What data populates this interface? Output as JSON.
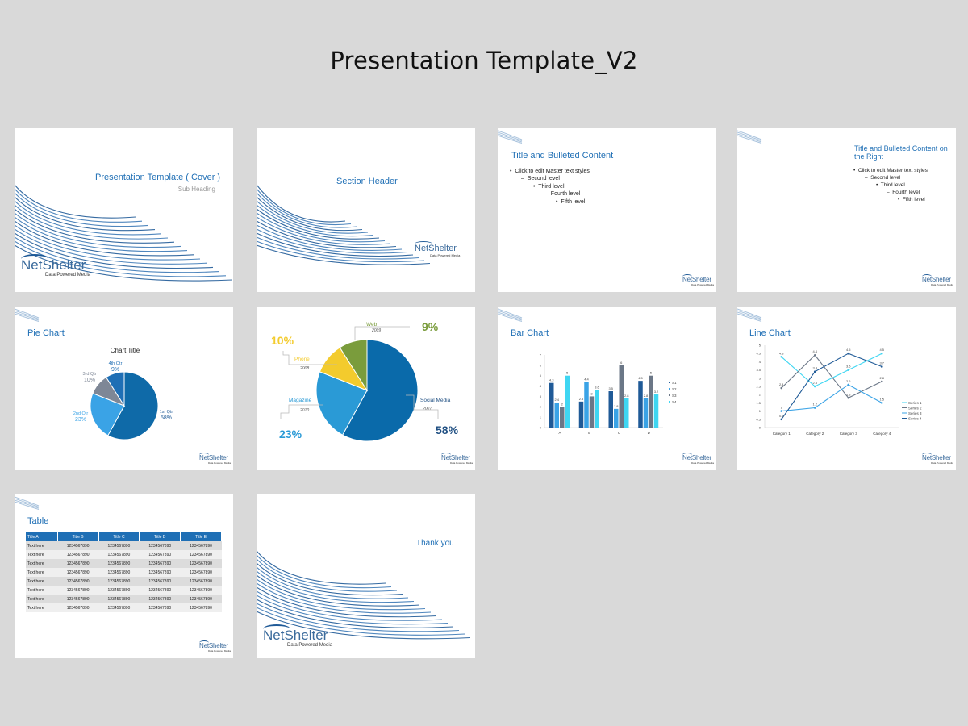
{
  "page_title": "Presentation Template_V2",
  "brand": {
    "logo": "NetShelter",
    "tagline": "Data Powered Media",
    "accent": "#1f6fb5"
  },
  "slides": {
    "cover": {
      "title": "Presentation Template ( Cover )",
      "subtitle": "Sub Heading"
    },
    "section": {
      "title": "Section Header"
    },
    "bulleted": {
      "title": "Title and Bulleted Content",
      "levels": [
        "Click to edit Master text styles",
        "Second level",
        "Third level",
        "Fourth level",
        "Fifth level"
      ]
    },
    "bulleted_right": {
      "title_line1": "Title and Bulleted Content on",
      "title_line2": "the Right",
      "levels": [
        "Click to edit Master text styles",
        "Second level",
        "Third level",
        "Fourth level",
        "Fifth level"
      ]
    },
    "pie": {
      "title": "Pie Chart"
    },
    "pie2": {},
    "bar": {
      "title": "Bar Chart"
    },
    "line": {
      "title": "Line Chart"
    },
    "table": {
      "title": "Table",
      "headers": [
        "Title A",
        "Title B",
        "Title C",
        "Title D",
        "Title E"
      ],
      "rows": [
        [
          "Text here",
          "1234567890",
          "1234567890",
          "1234567890",
          "1234567890"
        ],
        [
          "Text here",
          "1234567890",
          "1234567890",
          "1234567890",
          "1234567890"
        ],
        [
          "Text here",
          "1234567890",
          "1234567890",
          "1234567890",
          "1234567890"
        ],
        [
          "Text here",
          "1234567890",
          "1234567890",
          "1234567890",
          "1234567890"
        ],
        [
          "Text here",
          "1234567890",
          "1234567890",
          "1234567890",
          "1234567890"
        ],
        [
          "Text here",
          "1234567890",
          "1234567890",
          "1234567890",
          "1234567890"
        ],
        [
          "Text here",
          "1234567890",
          "1234567890",
          "1234567890",
          "1234567890"
        ],
        [
          "Text here",
          "1234567890",
          "1234567890",
          "1234567890",
          "1234567890"
        ]
      ]
    },
    "thanks": {
      "title": "Thank you"
    }
  },
  "chart_data": [
    {
      "type": "pie",
      "title": "Chart Title",
      "categories": [
        "1st Qtr",
        "2nd Qtr",
        "3rd Qtr",
        "4th Qtr"
      ],
      "labels": [
        "58%",
        "23%",
        "10%",
        "9%"
      ],
      "values": [
        58,
        23,
        10,
        9
      ],
      "colors": [
        "#0f6aa8",
        "#3aa3e6",
        "#7e8796",
        "#1f6fb5"
      ]
    },
    {
      "type": "pie",
      "categories": [
        "Social Media",
        "Magazine",
        "Phone",
        "Web"
      ],
      "years": [
        "2007",
        "2010",
        "2008",
        "2009"
      ],
      "labels": [
        "58%",
        "23%",
        "10%",
        "9%"
      ],
      "values": [
        58,
        23,
        10,
        9
      ],
      "colors": [
        "#0a6aaa",
        "#2a9ad6",
        "#f3cb2d",
        "#7a9c3c"
      ]
    },
    {
      "type": "bar",
      "categories": [
        "A",
        "B",
        "C",
        "D"
      ],
      "ylim": [
        0,
        7
      ],
      "yticks": [
        "0",
        "1",
        "2",
        "3",
        "4",
        "5",
        "6",
        "7"
      ],
      "series": [
        {
          "name": "S1",
          "values": [
            4.3,
            2.5,
            3.5,
            4.5
          ],
          "labels": [
            "4.3",
            "2.5",
            "3.5",
            "4.5"
          ],
          "color": "#1f5a97"
        },
        {
          "name": "S2",
          "values": [
            2.4,
            4.4,
            1.8,
            2.8
          ],
          "labels": [
            "2.4",
            "4.4",
            "1.8",
            "2.8"
          ],
          "color": "#3aa3e6"
        },
        {
          "name": "S3",
          "values": [
            2.0,
            3.0,
            6.0,
            5.0
          ],
          "labels": [
            "2",
            "3",
            "6",
            "5"
          ],
          "color": "#6b7787"
        },
        {
          "name": "S4",
          "values": [
            5.0,
            3.6,
            2.8,
            3.2
          ],
          "labels": [
            "5",
            "3.6",
            "2.8",
            "3.2"
          ],
          "color": "#3fd6f2"
        }
      ]
    },
    {
      "type": "line",
      "categories": [
        "Category 1",
        "Category 2",
        "Category 3",
        "Category 4"
      ],
      "ylim": [
        0,
        5
      ],
      "yticks": [
        "0",
        "0.5",
        "1",
        "1.5",
        "2",
        "2.5",
        "3",
        "3.5",
        "4",
        "4.5",
        "5"
      ],
      "series": [
        {
          "name": "Series 1",
          "values": [
            4.3,
            2.5,
            3.5,
            4.5
          ],
          "labels": [
            "4.3",
            "2.5",
            "3.5",
            "4.5"
          ],
          "color": "#3fd6f2"
        },
        {
          "name": "Series 2",
          "values": [
            2.4,
            4.4,
            1.8,
            2.8
          ],
          "labels": [
            "2.4",
            "4.4",
            "1.8",
            "2.8"
          ],
          "color": "#6b7787"
        },
        {
          "name": "Series 3",
          "values": [
            1.0,
            1.2,
            2.6,
            1.5
          ],
          "labels": [
            "1",
            "1.2",
            "2.6",
            "1.5"
          ],
          "color": "#3aa3e6"
        },
        {
          "name": "Series 4",
          "values": [
            0.5,
            3.4,
            4.5,
            3.7
          ],
          "labels": [
            "0.5",
            "3.4",
            "4.5",
            "3.7"
          ],
          "color": "#1f5a97"
        }
      ]
    }
  ]
}
